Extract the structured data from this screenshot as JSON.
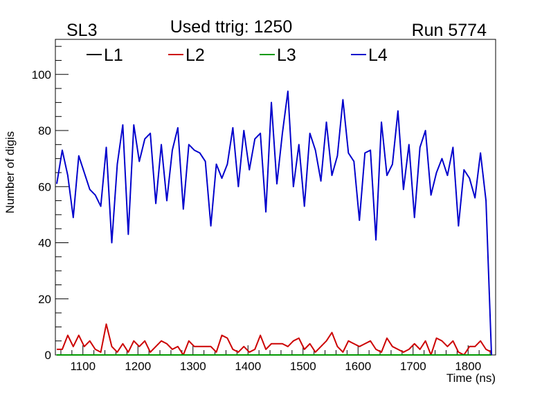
{
  "chart_data": {
    "type": "line",
    "title": "Used ttrig: 1250",
    "left_label": "SL3",
    "right_label": "Run 5774",
    "xlabel": "Time (ns)",
    "ylabel": "Number of digis",
    "xlim": [
      1050,
      1850
    ],
    "ylim": [
      0,
      112.5
    ],
    "x_ticks": [
      1100,
      1200,
      1300,
      1400,
      1500,
      1600,
      1700,
      1800
    ],
    "y_ticks": [
      0,
      20,
      40,
      60,
      80,
      100
    ],
    "grid": false,
    "legend_position": "top-left",
    "x_start": 1052.5,
    "x_step": 10,
    "series": [
      {
        "name": "L1",
        "color": "#000000",
        "values": [
          0,
          0,
          0,
          0,
          0,
          0,
          0,
          0,
          0,
          0,
          0,
          0,
          0,
          0,
          0,
          0,
          0,
          0,
          0,
          0,
          0,
          0,
          0,
          0,
          0,
          0,
          0,
          0,
          0,
          0,
          0,
          0,
          0,
          0,
          0,
          0,
          0,
          0,
          0,
          0,
          0,
          0,
          0,
          0,
          0,
          0,
          0,
          0,
          0,
          0,
          0,
          0,
          0,
          0,
          0,
          0,
          0,
          0,
          0,
          0,
          0,
          0,
          0,
          0,
          0,
          0,
          0,
          0,
          0,
          0,
          0,
          0,
          0,
          0,
          0,
          0,
          0,
          0,
          0,
          0
        ]
      },
      {
        "name": "L2",
        "color": "#cc0000",
        "values": [
          2,
          2,
          7,
          3,
          7,
          3,
          5,
          2,
          1,
          11,
          3,
          1,
          4,
          1,
          5,
          3,
          5,
          1,
          3,
          5,
          4,
          2,
          3,
          0,
          5,
          3,
          3,
          3,
          3,
          1,
          7,
          6,
          2,
          1,
          3,
          1,
          2,
          7,
          2,
          4,
          4,
          4,
          3,
          5,
          6,
          2,
          4,
          1,
          3,
          5,
          8,
          3,
          1,
          5,
          4,
          3,
          4,
          5,
          2,
          1,
          6,
          3,
          2,
          1,
          2,
          4,
          2,
          5,
          0,
          6,
          5,
          3,
          5,
          1,
          0,
          3,
          3,
          5,
          2,
          1
        ]
      },
      {
        "name": "L3",
        "color": "#009900",
        "values": [
          0,
          0,
          0,
          0,
          0,
          0,
          0,
          0,
          0,
          0,
          0,
          0,
          0,
          0,
          0,
          0,
          0,
          0,
          0,
          0,
          0,
          0,
          0,
          0,
          0,
          0,
          0,
          0,
          0,
          0,
          0,
          0,
          0,
          0,
          0,
          0,
          0,
          0,
          0,
          0,
          0,
          0,
          0,
          0,
          0,
          0,
          0,
          0,
          0,
          0,
          0,
          0,
          0,
          0,
          0,
          0,
          0,
          0,
          0,
          0,
          0,
          0,
          0,
          0,
          0,
          0,
          0,
          0,
          0,
          0,
          0,
          0,
          0,
          0,
          0,
          0,
          0,
          0,
          0,
          0
        ]
      },
      {
        "name": "L4",
        "color": "#0000cc",
        "values": [
          61,
          73,
          64,
          49,
          71,
          65,
          59,
          57,
          53,
          74,
          40,
          68,
          82,
          43,
          82,
          69,
          77,
          79,
          54,
          75,
          55,
          73,
          81,
          52,
          75,
          73,
          72,
          69,
          46,
          68,
          63,
          68,
          81,
          60,
          80,
          66,
          77,
          79,
          51,
          90,
          61,
          79,
          94,
          60,
          75,
          53,
          79,
          73,
          62,
          83,
          64,
          71,
          91,
          72,
          69,
          48,
          72,
          73,
          41,
          83,
          64,
          68,
          87,
          59,
          75,
          49,
          74,
          80,
          57,
          65,
          70,
          64,
          74,
          46,
          66,
          63,
          56,
          72,
          55,
          0
        ]
      }
    ]
  }
}
